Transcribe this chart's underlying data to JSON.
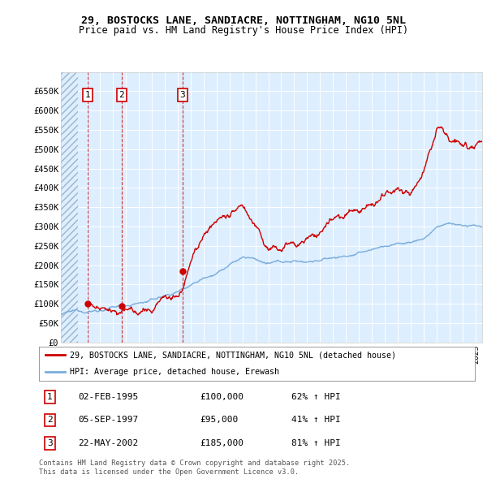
{
  "title_line1": "29, BOSTOCKS LANE, SANDIACRE, NOTTINGHAM, NG10 5NL",
  "title_line2": "Price paid vs. HM Land Registry's House Price Index (HPI)",
  "ylim": [
    0,
    700000
  ],
  "yticks": [
    0,
    50000,
    100000,
    150000,
    200000,
    250000,
    300000,
    350000,
    400000,
    450000,
    500000,
    550000,
    600000,
    650000
  ],
  "ytick_labels": [
    "£0",
    "£50K",
    "£100K",
    "£150K",
    "£200K",
    "£250K",
    "£300K",
    "£350K",
    "£400K",
    "£450K",
    "£500K",
    "£550K",
    "£600K",
    "£650K"
  ],
  "xlim": [
    1993,
    2025.5
  ],
  "purchases": [
    {
      "date": 1995.085,
      "price": 100000,
      "label": "1"
    },
    {
      "date": 1997.675,
      "price": 95000,
      "label": "2"
    },
    {
      "date": 2002.385,
      "price": 185000,
      "label": "3"
    }
  ],
  "legend_line1": "29, BOSTOCKS LANE, SANDIACRE, NOTTINGHAM, NG10 5NL (detached house)",
  "legend_line2": "HPI: Average price, detached house, Erewash",
  "table_entries": [
    {
      "num": "1",
      "date": "02-FEB-1995",
      "price": "£100,000",
      "hpi": "62% ↑ HPI"
    },
    {
      "num": "2",
      "date": "05-SEP-1997",
      "price": "£95,000",
      "hpi": "41% ↑ HPI"
    },
    {
      "num": "3",
      "date": "22-MAY-2002",
      "price": "£185,000",
      "hpi": "81% ↑ HPI"
    }
  ],
  "footnote": "Contains HM Land Registry data © Crown copyright and database right 2025.\nThis data is licensed under the Open Government Licence v3.0.",
  "line_color_red": "#cc0000",
  "line_color_blue": "#7aaddc",
  "plot_bg": "#ddeeff"
}
